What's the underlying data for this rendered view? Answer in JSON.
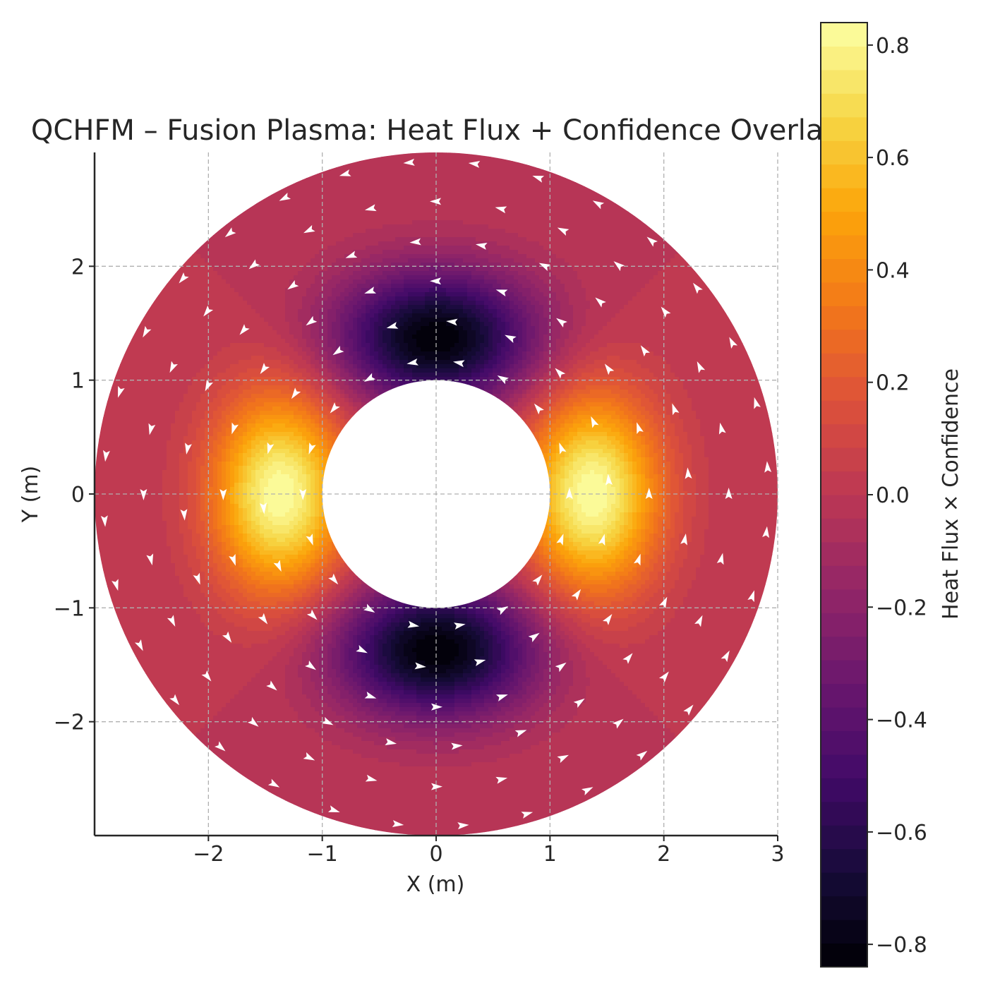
{
  "chart_data": {
    "type": "heatmap",
    "title": "QCHFM – Fusion Plasma: Heat Flux + Confidence Overlay",
    "xlabel": "X (m)",
    "ylabel": "Y (m)",
    "xlim": [
      -3,
      3
    ],
    "ylim": [
      -3,
      3
    ],
    "grid": true,
    "domain": {
      "shape": "annulus",
      "r_inner": 1.0,
      "r_outer": 3.0,
      "center": [
        0,
        0
      ]
    },
    "x_ticks": [
      "−2",
      "−1",
      "0",
      "1",
      "2",
      "3"
    ],
    "x_tick_values": [
      -2,
      -1,
      0,
      1,
      2,
      3
    ],
    "y_ticks": [
      "−2",
      "−1",
      "0",
      "1",
      "2"
    ],
    "y_tick_values": [
      -2,
      -1,
      0,
      1,
      2
    ],
    "field": {
      "description": "Heat Flux × Confidence",
      "extrema": [
        {
          "x": 1.37,
          "y": 0,
          "value": 0.84
        },
        {
          "x": -1.37,
          "y": 0,
          "value": 0.84
        },
        {
          "x": 0,
          "y": 1.37,
          "value": -0.84
        },
        {
          "x": 0,
          "y": -1.37,
          "value": -0.84
        }
      ],
      "background_value": 0.0
    },
    "quiver": {
      "color": "#ffffff",
      "rings": 6,
      "arrow_direction": "counterclockwise tangential"
    },
    "colorbar": {
      "label": "Heat Flux × Confidence",
      "colormap": "inferno",
      "vmin": -0.84,
      "vmax": 0.84,
      "levels": 40,
      "tick_values": [
        -0.8,
        -0.6,
        -0.4,
        -0.2,
        0.0,
        0.2,
        0.4,
        0.6,
        0.8
      ],
      "tick_labels": [
        "−0.8",
        "−0.6",
        "−0.4",
        "−0.2",
        "0.0",
        "0.2",
        "0.4",
        "0.6",
        "0.8"
      ]
    }
  }
}
